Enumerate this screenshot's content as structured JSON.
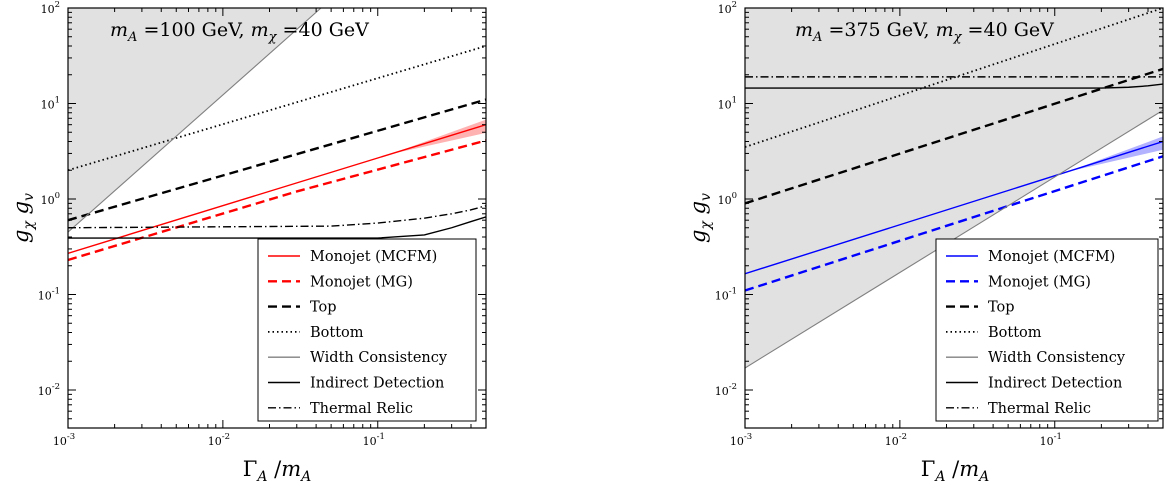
{
  "chart_data": [
    {
      "type": "line",
      "title": "m_A =100 GeV, m_χ =40 GeV",
      "title_parts": {
        "m": "m",
        "a": "A",
        "a_val": " =100 GeV, ",
        "m2": "m",
        "chi": "χ",
        "chi_val": " =40 GeV"
      },
      "xlabel": "Γ_A /m_A",
      "ylabel": "g_χ g_v",
      "xscale": "log",
      "yscale": "log",
      "xlim": [
        0.001,
        0.5
      ],
      "ylim": [
        0.004,
        100
      ],
      "xticks": [
        {
          "value": 0.001,
          "base": "10",
          "exp": "-3"
        },
        {
          "value": 0.01,
          "base": "10",
          "exp": "-2"
        },
        {
          "value": 0.1,
          "base": "10",
          "exp": "-1"
        }
      ],
      "yticks": [
        {
          "value": 0.01,
          "base": "10",
          "exp": "-2"
        },
        {
          "value": 0.1,
          "base": "10",
          "exp": "-1"
        },
        {
          "value": 1,
          "base": "10",
          "exp": "0"
        },
        {
          "value": 10,
          "base": "10",
          "exp": "1"
        },
        {
          "value": 100,
          "base": "10",
          "exp": "2"
        }
      ],
      "legend_position": "lower-right",
      "shaded_region": {
        "name": "Width Consistency excluded",
        "color": "#e1e1e1",
        "side": "above",
        "boundary": {
          "x": [
            0.001,
            0.043
          ],
          "y": [
            0.45,
            100
          ]
        }
      },
      "series": [
        {
          "name": "Monojet (MCFM)",
          "color": "#ff0000",
          "style": "solid",
          "band": true,
          "x": [
            0.001,
            0.5
          ],
          "y": [
            0.27,
            6.0
          ]
        },
        {
          "name": "Monojet (MG)",
          "color": "#ff0000",
          "style": "dashed",
          "x": [
            0.001,
            0.03,
            0.5
          ],
          "y": [
            0.23,
            1.2,
            4.1
          ]
        },
        {
          "name": "Top",
          "color": "#000000",
          "style": "dashed",
          "x": [
            0.001,
            0.5
          ],
          "y": [
            0.6,
            11
          ]
        },
        {
          "name": "Bottom",
          "color": "#000000",
          "style": "dotted",
          "x": [
            0.001,
            0.5
          ],
          "y": [
            2.0,
            40
          ]
        },
        {
          "name": "Width Consistency",
          "color": "#808080",
          "style": "solid",
          "x": [
            0.001,
            0.043
          ],
          "y": [
            0.45,
            100
          ]
        },
        {
          "name": "Indirect Detection",
          "color": "#000000",
          "style": "solid",
          "x": [
            0.001,
            0.1,
            0.2,
            0.3,
            0.4,
            0.5
          ],
          "y": [
            0.39,
            0.39,
            0.42,
            0.5,
            0.58,
            0.65
          ]
        },
        {
          "name": "Thermal Relic",
          "color": "#000000",
          "style": "dashdot",
          "x": [
            0.001,
            0.05,
            0.1,
            0.2,
            0.3,
            0.4,
            0.5
          ],
          "y": [
            0.5,
            0.52,
            0.56,
            0.63,
            0.7,
            0.77,
            0.85
          ]
        }
      ]
    },
    {
      "type": "line",
      "title": "m_A =375 GeV, m_χ =40 GeV",
      "title_parts": {
        "m": "m",
        "a": "A",
        "a_val": " =375 GeV, ",
        "m2": "m",
        "chi": "χ",
        "chi_val": " =40 GeV"
      },
      "xlabel": "Γ_A /m_A",
      "ylabel": "g_χ g_v",
      "xscale": "log",
      "yscale": "log",
      "xlim": [
        0.001,
        0.5
      ],
      "ylim": [
        0.004,
        100
      ],
      "xticks": [
        {
          "value": 0.001,
          "base": "10",
          "exp": "-3"
        },
        {
          "value": 0.01,
          "base": "10",
          "exp": "-2"
        },
        {
          "value": 0.1,
          "base": "10",
          "exp": "-1"
        }
      ],
      "yticks": [
        {
          "value": 0.01,
          "base": "10",
          "exp": "-2"
        },
        {
          "value": 0.1,
          "base": "10",
          "exp": "-1"
        },
        {
          "value": 1,
          "base": "10",
          "exp": "0"
        },
        {
          "value": 10,
          "base": "10",
          "exp": "1"
        },
        {
          "value": 100,
          "base": "10",
          "exp": "2"
        }
      ],
      "legend_position": "lower-right",
      "shaded_region": {
        "name": "Width Consistency excluded",
        "color": "#e1e1e1",
        "side": "above",
        "boundary": {
          "x": [
            0.001,
            0.5
          ],
          "y": [
            0.017,
            8.5
          ]
        }
      },
      "series": [
        {
          "name": "Monojet (MCFM)",
          "color": "#0000ff",
          "style": "solid",
          "band": true,
          "x": [
            0.001,
            0.5
          ],
          "y": [
            0.165,
            4.0
          ]
        },
        {
          "name": "Monojet (MG)",
          "color": "#0000ff",
          "style": "dashed",
          "x": [
            0.001,
            0.5
          ],
          "y": [
            0.11,
            2.8
          ]
        },
        {
          "name": "Top",
          "color": "#000000",
          "style": "dashed",
          "x": [
            0.001,
            0.5
          ],
          "y": [
            0.9,
            23
          ]
        },
        {
          "name": "Bottom",
          "color": "#000000",
          "style": "dotted",
          "x": [
            0.001,
            0.5
          ],
          "y": [
            3.5,
            100
          ]
        },
        {
          "name": "Width Consistency",
          "color": "#808080",
          "style": "solid",
          "x": [
            0.001,
            0.5
          ],
          "y": [
            0.017,
            8.5
          ]
        },
        {
          "name": "Indirect Detection",
          "color": "#000000",
          "style": "solid",
          "x": [
            0.001,
            0.2,
            0.3,
            0.4,
            0.5
          ],
          "y": [
            14.5,
            14.5,
            14.8,
            15.3,
            16
          ]
        },
        {
          "name": "Thermal Relic",
          "color": "#000000",
          "style": "dashdot",
          "x": [
            0.001,
            0.5
          ],
          "y": [
            19,
            19
          ]
        }
      ]
    }
  ]
}
